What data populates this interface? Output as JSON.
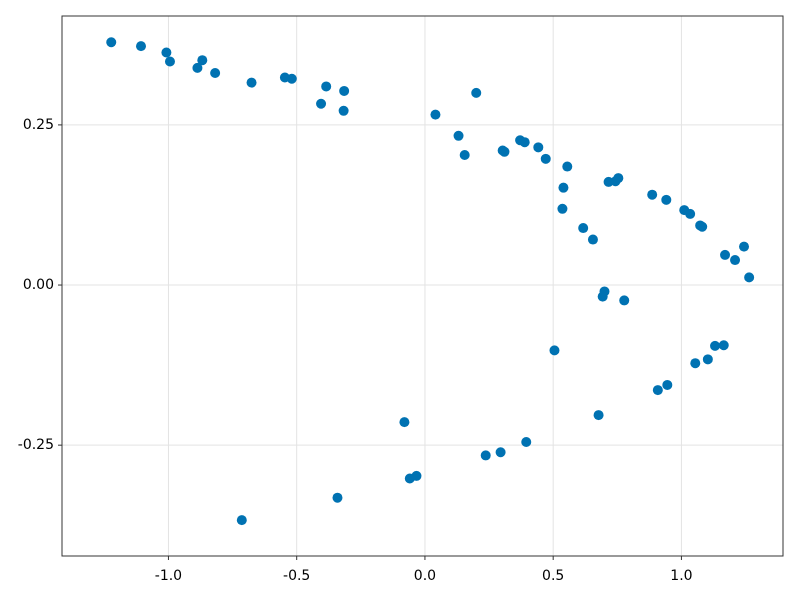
{
  "chart_data": {
    "type": "scatter",
    "color": "#0072b2",
    "grid": true,
    "x": [
      0.2,
      1.244,
      -1.107,
      -0.341,
      0.505,
      0.54,
      0.743,
      0.389,
      1.011,
      -0.315,
      1.165,
      -0.994,
      -0.033,
      0.7,
      0.303,
      1.081,
      -0.546,
      0.908,
      -0.317,
      1.131,
      -0.887,
      0.237,
      0.655,
      0.471,
      0.886,
      0.041,
      1.264,
      -1.223,
      -0.714,
      -0.08,
      0.777,
      0.131,
      1.209,
      -1.008,
      -0.059,
      0.693,
      0.31,
      1.073,
      -0.519,
      0.945,
      -0.405,
      1.054,
      -0.676,
      0.677,
      0.155,
      1.17,
      -0.868,
      0.295,
      0.617,
      0.555,
      0.754,
      0.371,
      1.034,
      -0.385,
      1.103,
      -0.818,
      0.395,
      0.536,
      0.716,
      0.442,
      0.941
    ],
    "y": [
      0.3,
      0.06,
      0.373,
      -0.332,
      -0.102,
      0.152,
      0.162,
      0.223,
      0.117,
      0.303,
      -0.094,
      0.349,
      -0.298,
      -0.01,
      0.21,
      0.091,
      0.324,
      -0.164,
      0.272,
      -0.095,
      0.339,
      -0.266,
      0.071,
      0.197,
      0.141,
      0.266,
      0.012,
      0.379,
      -0.367,
      -0.214,
      -0.024,
      0.233,
      0.039,
      0.363,
      -0.302,
      -0.018,
      0.208,
      0.093,
      0.322,
      -0.156,
      0.283,
      -0.122,
      0.316,
      -0.203,
      0.203,
      0.047,
      0.351,
      -0.261,
      0.089,
      0.185,
      0.167,
      0.226,
      0.111,
      0.31,
      -0.116,
      0.331,
      -0.245,
      0.119,
      0.161,
      0.215,
      0.133
    ],
    "xlim": [
      -1.415,
      1.396
    ],
    "ylim": [
      -0.423,
      0.42
    ],
    "xticks": [
      {
        "value": -1,
        "label": "-1.0"
      },
      -0.5,
      {
        "value": 0,
        "label": "0.0"
      },
      0.5,
      {
        "value": 1,
        "label": "1.0"
      }
    ],
    "yticks": [
      -0.25,
      {
        "value": 0,
        "label": "0.00"
      },
      0.25
    ]
  }
}
